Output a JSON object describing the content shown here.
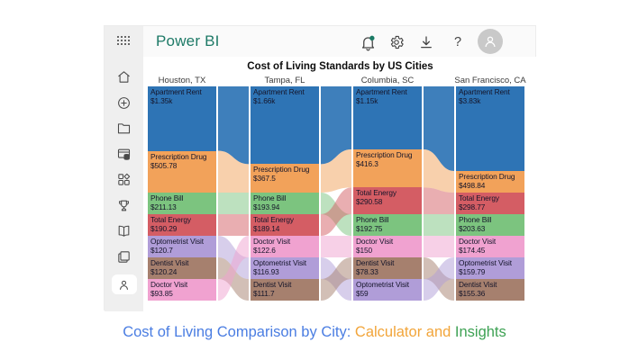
{
  "header": {
    "app_title": "Power BI",
    "app_title_color": "#1E7A67",
    "icons": [
      "app-launcher-waffle",
      "notifications-bell",
      "settings-gear",
      "download",
      "help",
      "account-avatar"
    ],
    "notification_dot_color": "#1A7A64"
  },
  "sidebar": {
    "items": [
      {
        "icon": "home-icon",
        "name": "home"
      },
      {
        "icon": "plus-circle-icon",
        "name": "create"
      },
      {
        "icon": "folder-icon",
        "name": "browse"
      },
      {
        "icon": "data-hub-icon",
        "name": "data-hub"
      },
      {
        "icon": "apps-icon",
        "name": "apps"
      },
      {
        "icon": "trophy-icon",
        "name": "goals"
      },
      {
        "icon": "book-icon",
        "name": "learn"
      },
      {
        "icon": "layers-icon",
        "name": "workspaces"
      },
      {
        "icon": "person-icon",
        "name": "my-workspace"
      }
    ]
  },
  "chart": {
    "title": "Cost of Living Standards by US Cities",
    "colors": {
      "Apartment Rent": "#2E74B5",
      "Prescription Drug": "#F2A25A",
      "Phone Bill": "#7CC47F",
      "Total Energy": "#D45D64",
      "Doctor Visit": "#F0A2D0",
      "Optometrist Visit": "#B09DD8",
      "Dentist Visit": "#A6806E"
    },
    "cities": [
      {
        "name": "Houston, TX",
        "items": [
          {
            "label": "Apartment Rent",
            "value_text": "$1.35k",
            "value": 1350
          },
          {
            "label": "Prescription Drug",
            "value_text": "$505.78",
            "value": 505.78
          },
          {
            "label": "Phone Bill",
            "value_text": "$211.13",
            "value": 211.13
          },
          {
            "label": "Total Energy",
            "value_text": "$190.29",
            "value": 190.29
          },
          {
            "label": "Optometrist Visit",
            "value_text": "$120.7",
            "value": 120.7
          },
          {
            "label": "Dentist Visit",
            "value_text": "$120.24",
            "value": 120.24
          },
          {
            "label": "Doctor Visit",
            "value_text": "$93.85",
            "value": 93.85
          }
        ]
      },
      {
        "name": "Tampa, FL",
        "items": [
          {
            "label": "Apartment Rent",
            "value_text": "$1.66k",
            "value": 1660
          },
          {
            "label": "Prescription Drug",
            "value_text": "$367.5",
            "value": 367.5
          },
          {
            "label": "Phone Bill",
            "value_text": "$193.94",
            "value": 193.94
          },
          {
            "label": "Total Energy",
            "value_text": "$189.14",
            "value": 189.14
          },
          {
            "label": "Doctor Visit",
            "value_text": "$122.6",
            "value": 122.6
          },
          {
            "label": "Optometrist Visit",
            "value_text": "$116.93",
            "value": 116.93
          },
          {
            "label": "Dentist Visit",
            "value_text": "$111.7",
            "value": 111.7
          }
        ]
      },
      {
        "name": "Columbia, SC",
        "items": [
          {
            "label": "Apartment Rent",
            "value_text": "$1.15k",
            "value": 1150
          },
          {
            "label": "Prescription Drug",
            "value_text": "$416.3",
            "value": 416.3
          },
          {
            "label": "Total Energy",
            "value_text": "$290.58",
            "value": 290.58
          },
          {
            "label": "Phone Bill",
            "value_text": "$192.75",
            "value": 192.75
          },
          {
            "label": "Doctor Visit",
            "value_text": "$150",
            "value": 150
          },
          {
            "label": "Dentist Visit",
            "value_text": "$78.33",
            "value": 78.33
          },
          {
            "label": "Optometrist Visit",
            "value_text": "$59",
            "value": 59
          }
        ]
      },
      {
        "name": "San Francisco, CA",
        "items": [
          {
            "label": "Apartment Rent",
            "value_text": "$3.83k",
            "value": 3830
          },
          {
            "label": "Prescription Drug",
            "value_text": "$498.84",
            "value": 498.84
          },
          {
            "label": "Total Energy",
            "value_text": "$298.77",
            "value": 298.77
          },
          {
            "label": "Phone Bill",
            "value_text": "$203.63",
            "value": 203.63
          },
          {
            "label": "Doctor Visit",
            "value_text": "$174.45",
            "value": 174.45
          },
          {
            "label": "Optometrist Visit",
            "value_text": "$159.79",
            "value": 159.79
          },
          {
            "label": "Dentist Visit",
            "value_text": "$155.36",
            "value": 155.36
          }
        ]
      }
    ]
  },
  "chart_data": {
    "type": "ribbon",
    "title": "Cost of Living Standards by US Cities",
    "categories": [
      "Houston, TX",
      "Tampa, FL",
      "Columbia, SC",
      "San Francisco, CA"
    ],
    "series": [
      {
        "name": "Apartment Rent",
        "values": [
          1350,
          1660,
          1150,
          3830
        ]
      },
      {
        "name": "Prescription Drug",
        "values": [
          505.78,
          367.5,
          416.3,
          498.84
        ]
      },
      {
        "name": "Phone Bill",
        "values": [
          211.13,
          193.94,
          192.75,
          203.63
        ]
      },
      {
        "name": "Total Energy",
        "values": [
          190.29,
          189.14,
          290.58,
          298.77
        ]
      },
      {
        "name": "Optometrist Visit",
        "values": [
          120.7,
          116.93,
          59,
          159.79
        ]
      },
      {
        "name": "Dentist Visit",
        "values": [
          120.24,
          111.7,
          78.33,
          155.36
        ]
      },
      {
        "name": "Doctor Visit",
        "values": [
          93.85,
          122.6,
          150,
          174.45
        ]
      }
    ],
    "legend_position": "none",
    "grid": false
  },
  "caption": {
    "part1": "Cost of Living Comparison by City: ",
    "part2": "Calculator and ",
    "part3": "Insights",
    "colors": {
      "part1": "#4A7DE2",
      "part2": "#F2A53A",
      "part3": "#3EA254"
    }
  }
}
